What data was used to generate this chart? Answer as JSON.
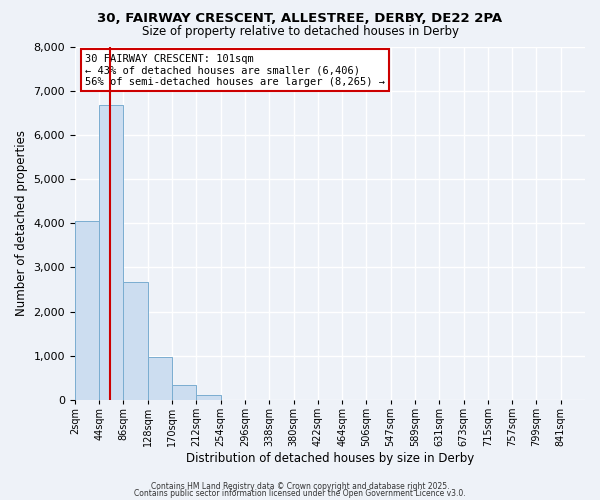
{
  "title1": "30, FAIRWAY CRESCENT, ALLESTREE, DERBY, DE22 2PA",
  "title2": "Size of property relative to detached houses in Derby",
  "xlabel": "Distribution of detached houses by size in Derby",
  "ylabel": "Number of detached properties",
  "num_bins": 21,
  "bar_heights": [
    4050,
    6680,
    2680,
    980,
    330,
    110,
    0,
    0,
    0,
    0,
    0,
    0,
    0,
    0,
    0,
    0,
    0,
    0,
    0,
    0,
    0
  ],
  "bar_color": "#ccddf0",
  "bar_edgecolor": "#7aadd0",
  "tick_labels": [
    "2sqm",
    "44sqm",
    "86sqm",
    "128sqm",
    "170sqm",
    "212sqm",
    "254sqm",
    "296sqm",
    "338sqm",
    "380sqm",
    "422sqm",
    "464sqm",
    "506sqm",
    "547sqm",
    "589sqm",
    "631sqm",
    "673sqm",
    "715sqm",
    "757sqm",
    "799sqm",
    "841sqm"
  ],
  "ylim": [
    0,
    8000
  ],
  "yticks": [
    0,
    1000,
    2000,
    3000,
    4000,
    5000,
    6000,
    7000,
    8000
  ],
  "vline_bin": 1.43,
  "vline_color": "#cc0000",
  "annotation_title": "30 FAIRWAY CRESCENT: 101sqm",
  "annotation_line1": "← 43% of detached houses are smaller (6,406)",
  "annotation_line2": "56% of semi-detached houses are larger (8,265) →",
  "annotation_box_color": "#ffffff",
  "annotation_box_edgecolor": "#cc0000",
  "bg_color": "#eef2f8",
  "grid_color": "#ffffff",
  "footer1": "Contains HM Land Registry data © Crown copyright and database right 2025.",
  "footer2": "Contains public sector information licensed under the Open Government Licence v3.0."
}
